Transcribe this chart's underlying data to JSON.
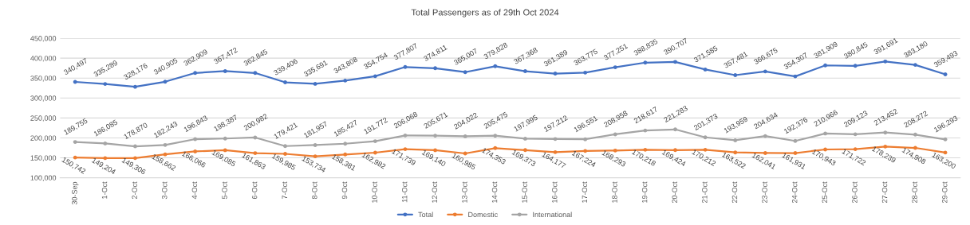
{
  "chart_data": {
    "type": "line",
    "title": "Total Passengers as of 29th Oct 2024",
    "categories": [
      "30-Sep",
      "1-Oct",
      "2-Oct",
      "3-Oct",
      "4-Oct",
      "5-Oct",
      "6-Oct",
      "7-Oct",
      "8-Oct",
      "9-Oct",
      "10-Oct",
      "11-Oct",
      "12-Oct",
      "13-Oct",
      "14-Oct",
      "15-Oct",
      "16-Oct",
      "17-Oct",
      "18-Oct",
      "19-Oct",
      "20-Oct",
      "21-Oct",
      "22-Oct",
      "23-Oct",
      "24-Oct",
      "25-Oct",
      "26-Oct",
      "27-Oct",
      "28-Oct",
      "29-Oct"
    ],
    "series": [
      {
        "name": "Total",
        "color": "#4472c4",
        "values": [
          340497,
          335289,
          328176,
          340905,
          362909,
          367472,
          362845,
          339406,
          335691,
          343808,
          354754,
          377807,
          374811,
          365007,
          379828,
          367368,
          361389,
          363775,
          377251,
          388835,
          390707,
          371585,
          357481,
          366675,
          354307,
          381909,
          380845,
          391691,
          383180,
          359493
        ],
        "value_labels": [
          "340,497",
          "335,289",
          "328,176",
          "340,905",
          "362,909",
          "367,472",
          "362,845",
          "339,406",
          "335,691",
          "343,808",
          "354,754",
          "377,807",
          "374,811",
          "365,007",
          "379,828",
          "367,368",
          "361,389",
          "363,775",
          "377,251",
          "388,835",
          "390,707",
          "371,585",
          "357,481",
          "366,675",
          "354,307",
          "381,909",
          "380,845",
          "391,691",
          "383,180",
          "359,493"
        ]
      },
      {
        "name": "Domestic",
        "color": "#ed7d31",
        "values": [
          150742,
          149204,
          149306,
          158662,
          166066,
          169085,
          161863,
          159985,
          153734,
          158381,
          162982,
          171739,
          169140,
          160985,
          174353,
          169373,
          164177,
          167224,
          168293,
          170218,
          169424,
          170212,
          163522,
          162041,
          161931,
          170943,
          171722,
          178239,
          174908,
          163200
        ],
        "value_labels": [
          "150,742",
          "149,204",
          "149,306",
          "158,662",
          "166,066",
          "169,085",
          "161,863",
          "159,985",
          "153,734",
          "158,381",
          "162,982",
          "171,739",
          "169,140",
          "160,985",
          "174,353",
          "169,373",
          "164,177",
          "167,224",
          "168,293",
          "170,218",
          "169,424",
          "170,212",
          "163,522",
          "162,041",
          "161,931",
          "170,943",
          "171,722",
          "178,239",
          "174,908",
          "163,200"
        ]
      },
      {
        "name": "International",
        "color": "#a5a5a5",
        "values": [
          189755,
          186085,
          178870,
          182243,
          196843,
          198387,
          200982,
          179421,
          181957,
          185427,
          191772,
          206068,
          205671,
          204022,
          205475,
          197995,
          197212,
          196551,
          208958,
          218617,
          221283,
          201373,
          193959,
          204634,
          192376,
          210966,
          209123,
          213452,
          208272,
          196293
        ],
        "value_labels": [
          "189,755",
          "186,085",
          "178,870",
          "182,243",
          "196,843",
          "198,387",
          "200,982",
          "179,421",
          "181,957",
          "185,427",
          "191,772",
          "206,068",
          "205,671",
          "204,022",
          "205,475",
          "197,995",
          "197,212",
          "196,551",
          "208,958",
          "218,617",
          "221,283",
          "201,373",
          "193,959",
          "204,634",
          "192,376",
          "210,966",
          "209,123",
          "213,452",
          "208,272",
          "196,293"
        ]
      }
    ],
    "ylim": [
      100000,
      450000
    ],
    "yticks": [
      {
        "value": 100000,
        "label": "100,000"
      },
      {
        "value": 150000,
        "label": "150,000"
      },
      {
        "value": 200000,
        "label": "200,000"
      },
      {
        "value": 250000,
        "label": "250,000"
      },
      {
        "value": 300000,
        "label": "300,000"
      },
      {
        "value": 350000,
        "label": "350,000"
      },
      {
        "value": 400000,
        "label": "400,000"
      },
      {
        "value": 450000,
        "label": "450,000"
      }
    ],
    "grid": "y",
    "legend": "bottom",
    "marker": "circle",
    "line_style": "solid"
  }
}
